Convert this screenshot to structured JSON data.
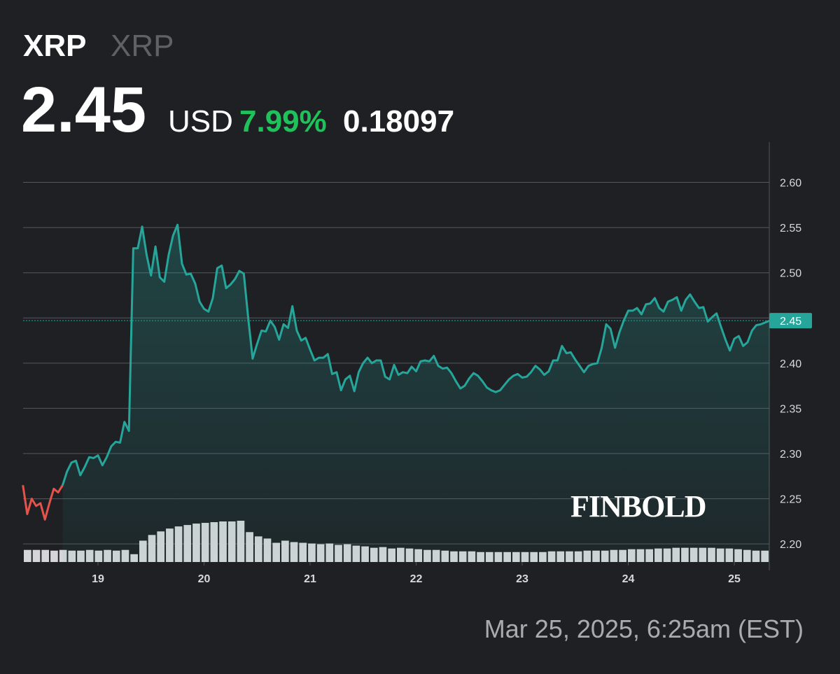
{
  "header": {
    "symbol": "XRP",
    "name": "XRP",
    "price": "2.45",
    "currency": "USD",
    "change_percent": "7.99%",
    "change": "0.18097"
  },
  "timestamp": "Mar 25, 2025, 6:25am (EST)",
  "watermark": "FINBOLD",
  "chart_data": {
    "type": "line",
    "series": [
      {
        "color": "#e5534b",
        "x": [
          18.292,
          18.333,
          18.375,
          18.417,
          18.458,
          18.5,
          18.542,
          18.583,
          18.625,
          18.667
        ],
        "values": [
          2.265,
          2.233,
          2.25,
          2.242,
          2.245,
          2.227,
          2.245,
          2.261,
          2.257,
          2.265
        ]
      },
      {
        "color": "#26a69a",
        "area": true,
        "x": [
          18.667,
          18.708,
          18.75,
          18.792,
          18.833,
          18.875,
          18.917,
          18.958,
          19,
          19.042,
          19.083,
          19.125,
          19.167,
          19.208,
          19.25,
          19.292,
          19.333,
          19.375,
          19.417,
          19.458,
          19.5,
          19.542,
          19.583,
          19.625,
          19.667,
          19.708,
          19.75,
          19.792,
          19.833,
          19.875,
          19.917,
          19.958,
          20,
          20.042,
          20.083,
          20.125,
          20.167,
          20.208,
          20.25,
          20.292,
          20.333,
          20.375,
          20.417,
          20.458,
          20.5,
          20.542,
          20.583,
          20.625,
          20.667,
          20.708,
          20.75,
          20.792,
          20.833,
          20.875,
          20.917,
          20.958,
          21,
          21.042,
          21.083,
          21.125,
          21.167,
          21.208,
          21.25,
          21.292,
          21.333,
          21.375,
          21.417,
          21.458,
          21.5,
          21.542,
          21.583,
          21.625,
          21.667,
          21.708,
          21.75,
          21.792,
          21.833,
          21.875,
          21.917,
          21.958,
          22,
          22.042,
          22.083,
          22.125,
          22.167,
          22.208,
          22.25,
          22.292,
          22.333,
          22.375,
          22.417,
          22.458,
          22.5,
          22.542,
          22.583,
          22.625,
          22.667,
          22.708,
          22.75,
          22.792,
          22.833,
          22.875,
          22.917,
          22.958,
          23,
          23.042,
          23.083,
          23.125,
          23.167,
          23.208,
          23.25,
          23.292,
          23.333,
          23.375,
          23.417,
          23.458,
          23.5,
          23.542,
          23.583,
          23.625,
          23.667,
          23.708,
          23.75,
          23.792,
          23.833,
          23.875,
          23.917,
          23.958,
          24,
          24.042,
          24.083,
          24.125,
          24.167,
          24.208,
          24.25,
          24.292,
          24.333,
          24.375,
          24.417,
          24.458,
          24.5,
          24.542,
          24.583,
          24.625,
          24.667,
          24.708,
          24.75,
          24.792,
          24.833,
          24.875,
          24.917,
          24.958,
          25,
          25.042,
          25.083,
          25.125,
          25.167,
          25.208,
          25.25,
          25.292,
          25.333
        ],
        "values": [
          2.265,
          2.28,
          2.29,
          2.292,
          2.276,
          2.285,
          2.296,
          2.295,
          2.298,
          2.287,
          2.296,
          2.308,
          2.313,
          2.312,
          2.335,
          2.325,
          2.527,
          2.527,
          2.551,
          2.52,
          2.497,
          2.529,
          2.495,
          2.49,
          2.52,
          2.541,
          2.553,
          2.51,
          2.498,
          2.499,
          2.488,
          2.468,
          2.46,
          2.457,
          2.472,
          2.505,
          2.508,
          2.483,
          2.487,
          2.493,
          2.502,
          2.499,
          2.45,
          2.405,
          2.421,
          2.436,
          2.435,
          2.447,
          2.44,
          2.426,
          2.443,
          2.439,
          2.463,
          2.436,
          2.425,
          2.428,
          2.415,
          2.403,
          2.406,
          2.406,
          2.41,
          2.388,
          2.39,
          2.37,
          2.382,
          2.386,
          2.369,
          2.39,
          2.4,
          2.406,
          2.4,
          2.403,
          2.403,
          2.385,
          2.382,
          2.398,
          2.387,
          2.39,
          2.389,
          2.396,
          2.391,
          2.402,
          2.403,
          2.402,
          2.408,
          2.397,
          2.394,
          2.395,
          2.389,
          2.38,
          2.372,
          2.375,
          2.383,
          2.389,
          2.386,
          2.38,
          2.373,
          2.37,
          2.368,
          2.37,
          2.376,
          2.382,
          2.386,
          2.388,
          2.384,
          2.385,
          2.39,
          2.397,
          2.393,
          2.387,
          2.391,
          2.403,
          2.403,
          2.419,
          2.411,
          2.412,
          2.404,
          2.397,
          2.39,
          2.397,
          2.399,
          2.4,
          2.417,
          2.443,
          2.438,
          2.417,
          2.434,
          2.447,
          2.458,
          2.458,
          2.461,
          2.454,
          2.465,
          2.466,
          2.472,
          2.461,
          2.457,
          2.468,
          2.47,
          2.473,
          2.458,
          2.47,
          2.476,
          2.468,
          2.461,
          2.462,
          2.446,
          2.451,
          2.455,
          2.44,
          2.426,
          2.414,
          2.427,
          2.43,
          2.419,
          2.423,
          2.436,
          2.442,
          2.443,
          2.445,
          2.447
        ]
      }
    ],
    "xlim": [
      18.294,
      25.33
    ],
    "xticks": [
      19,
      20,
      21,
      22,
      23,
      24,
      25
    ],
    "ylim": [
      2.18,
      2.643
    ],
    "yticks": [
      {
        "value": 2.2,
        "label": "2.20"
      },
      2.25,
      {
        "value": 2.3,
        "label": "2.30"
      },
      2.35,
      {
        "value": 2.4,
        "label": "2.40"
      },
      2.45,
      {
        "value": 2.5,
        "label": "2.50"
      },
      2.55,
      {
        "value": 2.6,
        "label": "2.60"
      }
    ],
    "grid": true,
    "current_price": {
      "value": 2.447,
      "label": "2.45"
    },
    "volume": {
      "color": "#d6d6d8",
      "values": [
        17,
        17,
        17,
        16,
        17,
        16,
        16,
        17,
        16,
        17,
        16,
        17,
        11,
        30,
        38,
        43,
        47,
        50,
        52,
        54,
        55,
        56,
        57,
        57,
        58,
        42,
        36,
        33,
        27,
        30,
        28,
        27,
        26,
        25,
        26,
        24,
        25,
        23,
        22,
        20,
        21,
        19,
        20,
        19,
        18,
        17,
        17,
        16,
        15,
        15,
        15,
        14,
        14,
        14,
        14,
        14,
        14,
        14,
        14,
        15,
        15,
        15,
        15,
        16,
        16,
        16,
        17,
        17,
        18,
        18,
        18,
        19,
        19,
        20,
        20,
        20,
        20,
        20,
        19,
        19,
        18,
        17,
        16,
        16
      ]
    }
  }
}
